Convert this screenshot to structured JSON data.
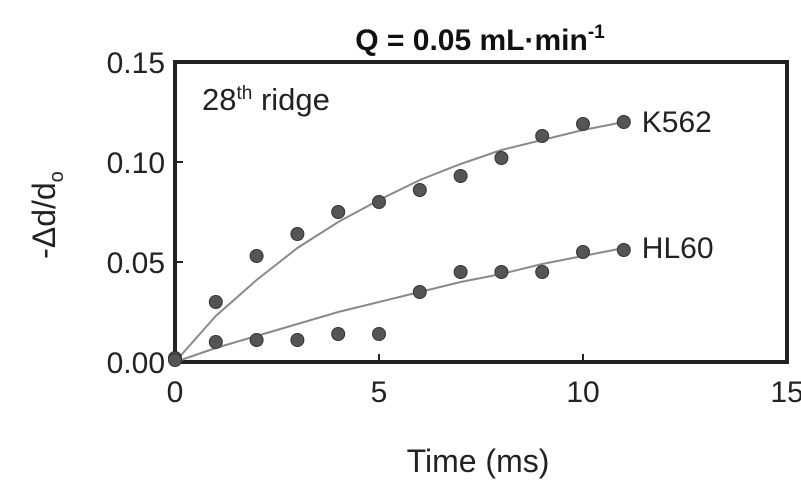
{
  "chart_data": {
    "type": "scatter",
    "title": {
      "prefix": "Q = 0.05 mL·min",
      "sup": "-1"
    },
    "xlabel": "Time (ms)",
    "ylabel": "-Δd/d",
    "ylabel_sub": "o",
    "xlim": [
      0,
      15
    ],
    "ylim": [
      0,
      0.15
    ],
    "xticks": [
      "0",
      "5",
      "10",
      "15"
    ],
    "yticks": [
      "0.00",
      "0.05",
      "0.10",
      "0.15"
    ],
    "annotation": {
      "prefix": "28",
      "sup": "th",
      "suffix": " ridge"
    },
    "series": [
      {
        "name": "K562",
        "x": [
          0,
          1,
          2,
          3,
          4,
          5,
          6,
          7,
          8,
          9,
          10,
          11
        ],
        "y": [
          0.002,
          0.03,
          0.053,
          0.064,
          0.075,
          0.08,
          0.086,
          0.093,
          0.102,
          0.113,
          0.119,
          0.12
        ],
        "fit_x": [
          0,
          1,
          2,
          3,
          4,
          5,
          6,
          7,
          8,
          9,
          10,
          11
        ],
        "fit_y": [
          0.0,
          0.023,
          0.041,
          0.057,
          0.07,
          0.081,
          0.091,
          0.099,
          0.106,
          0.111,
          0.116,
          0.12
        ]
      },
      {
        "name": "HL60",
        "x": [
          0,
          1,
          2,
          3,
          4,
          5,
          6,
          7,
          8,
          9,
          10,
          11
        ],
        "y": [
          0.001,
          0.01,
          0.011,
          0.011,
          0.014,
          0.014,
          0.035,
          0.045,
          0.045,
          0.045,
          0.055,
          0.056
        ],
        "fit_x": [
          0,
          1,
          2,
          3,
          4,
          5,
          6,
          7,
          8,
          9,
          10,
          11
        ],
        "fit_y": [
          0.0,
          0.007,
          0.013,
          0.019,
          0.025,
          0.03,
          0.035,
          0.04,
          0.044,
          0.049,
          0.053,
          0.057
        ]
      }
    ],
    "legend": "none",
    "grid": false,
    "colors": {
      "marker": "#555555",
      "fit_line": "#8a8a8a",
      "frame": "#222222"
    }
  }
}
